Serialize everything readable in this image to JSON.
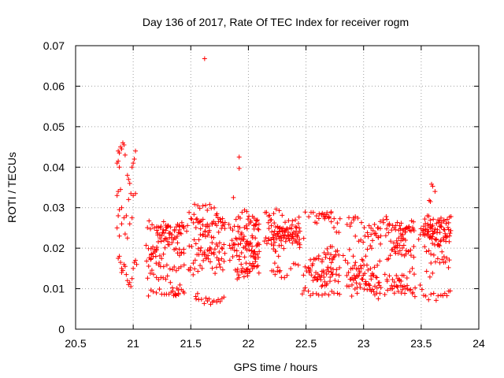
{
  "chart_data": {
    "type": "scatter",
    "title": "Day 136 of 2017, Rate Of TEC Index for receiver rogm",
    "xlabel": "GPS time / hours",
    "ylabel": "ROTI / TECUs",
    "xlim": [
      20.5,
      24
    ],
    "ylim": [
      0,
      0.07
    ],
    "xticks": [
      20.5,
      21,
      21.5,
      22,
      22.5,
      23,
      23.5,
      24
    ],
    "yticks": [
      0,
      0.01,
      0.02,
      0.03,
      0.04,
      0.05,
      0.06,
      0.07
    ],
    "xtick_labels": [
      "20.5",
      "21",
      "21.5",
      "22",
      "22.5",
      "23",
      "23.5",
      "24"
    ],
    "ytick_labels": [
      "0",
      "0.01",
      "0.02",
      "0.03",
      "0.04",
      "0.05",
      "0.06",
      "0.07"
    ],
    "grid": true,
    "marker": "plus",
    "color": "#ff0000",
    "series": [
      {
        "name": "ROTI",
        "points": [
          [
            20.86,
            0.041
          ],
          [
            20.87,
            0.044
          ],
          [
            20.88,
            0.0435
          ],
          [
            20.89,
            0.045
          ],
          [
            20.9,
            0.0445
          ],
          [
            20.91,
            0.046
          ],
          [
            20.92,
            0.0455
          ],
          [
            20.93,
            0.043
          ],
          [
            20.87,
            0.0415
          ],
          [
            20.88,
            0.04
          ],
          [
            20.86,
            0.033
          ],
          [
            20.87,
            0.034
          ],
          [
            20.89,
            0.0345
          ],
          [
            20.9,
            0.03
          ],
          [
            20.88,
            0.0295
          ],
          [
            20.87,
            0.028
          ],
          [
            20.86,
            0.025
          ],
          [
            20.88,
            0.023
          ],
          [
            20.9,
            0.026
          ],
          [
            20.92,
            0.0275
          ],
          [
            20.94,
            0.028
          ],
          [
            20.95,
            0.038
          ],
          [
            20.96,
            0.037
          ],
          [
            20.97,
            0.036
          ],
          [
            20.99,
            0.04
          ],
          [
            21.0,
            0.041
          ],
          [
            21.01,
            0.042
          ],
          [
            21.02,
            0.044
          ],
          [
            20.98,
            0.0335
          ],
          [
            21.0,
            0.033
          ],
          [
            21.02,
            0.0335
          ],
          [
            20.96,
            0.032
          ],
          [
            20.88,
            0.018
          ],
          [
            20.89,
            0.0165
          ],
          [
            20.9,
            0.015
          ],
          [
            20.91,
            0.0145
          ],
          [
            20.92,
            0.016
          ],
          [
            20.93,
            0.0155
          ],
          [
            20.94,
            0.0135
          ],
          [
            20.95,
            0.012
          ],
          [
            20.96,
            0.011
          ],
          [
            20.97,
            0.0115
          ],
          [
            20.98,
            0.0105
          ],
          [
            20.99,
            0.0125
          ],
          [
            21.0,
            0.015
          ],
          [
            21.01,
            0.0165
          ],
          [
            21.02,
            0.017
          ],
          [
            21.03,
            0.016
          ],
          [
            20.93,
            0.0235
          ],
          [
            20.95,
            0.0225
          ],
          [
            20.97,
            0.026
          ],
          [
            20.99,
            0.0275
          ],
          [
            20.87,
            0.0175
          ],
          [
            20.9,
            0.014
          ],
          [
            21.62,
            0.0668
          ],
          [
            21.92,
            0.0425
          ],
          [
            21.92,
            0.0397
          ],
          [
            21.87,
            0.0325
          ],
          [
            23.59,
            0.0358
          ],
          [
            23.6,
            0.0353
          ],
          [
            23.57,
            0.0318
          ],
          [
            23.58,
            0.0315
          ],
          [
            23.62,
            0.034
          ]
        ],
        "bands": [
          {
            "x": [
              21.08,
              21.45
            ],
            "y": [
              0.008,
              0.03
            ],
            "n": 150,
            "seed": 11
          },
          {
            "x": [
              21.45,
              21.8
            ],
            "y": [
              0.006,
              0.031
            ],
            "n": 140,
            "seed": 23
          },
          {
            "x": [
              21.8,
              22.1
            ],
            "y": [
              0.009,
              0.03
            ],
            "n": 130,
            "seed": 37
          },
          {
            "x": [
              22.1,
              22.45
            ],
            "y": [
              0.007,
              0.03
            ],
            "n": 125,
            "seed": 41
          },
          {
            "x": [
              22.45,
              22.8
            ],
            "y": [
              0.008,
              0.029
            ],
            "n": 125,
            "seed": 53
          },
          {
            "x": [
              22.8,
              23.15
            ],
            "y": [
              0.007,
              0.028
            ],
            "n": 125,
            "seed": 67
          },
          {
            "x": [
              23.15,
              23.45
            ],
            "y": [
              0.008,
              0.03
            ],
            "n": 120,
            "seed": 71
          },
          {
            "x": [
              23.45,
              23.76
            ],
            "y": [
              0.007,
              0.028
            ],
            "n": 120,
            "seed": 83
          }
        ]
      }
    ]
  }
}
